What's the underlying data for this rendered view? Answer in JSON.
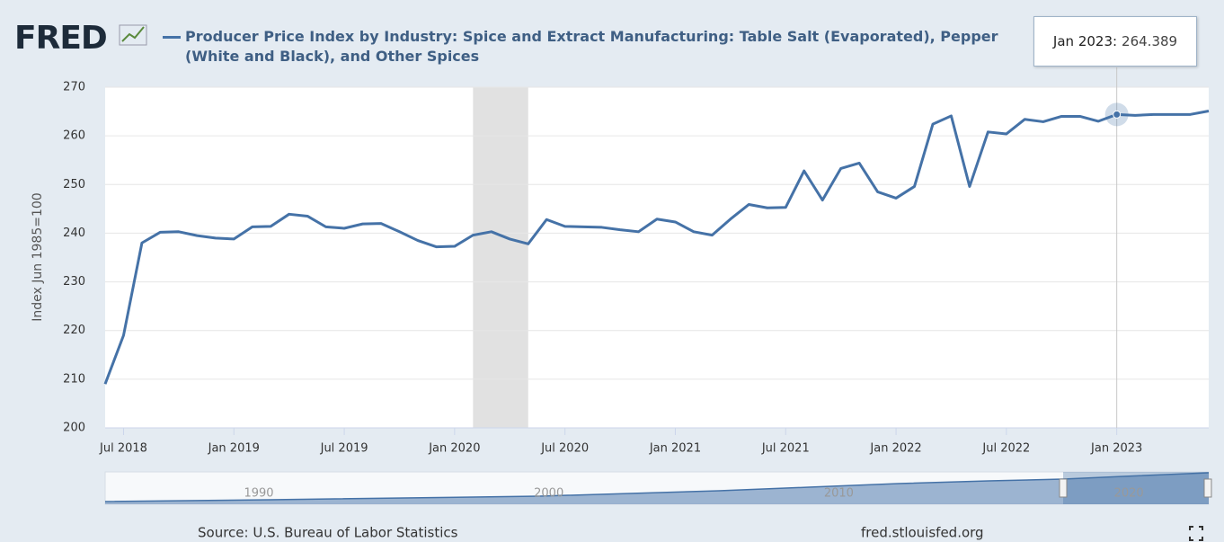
{
  "logo": "FRED",
  "chart_data": {
    "type": "line",
    "title": "Producer Price Index by Industry: Spice and Extract Manufacturing: Table Salt (Evaporated), Pepper (White and Black), and Other Spices",
    "y_label": "Index Jun 1985=100",
    "x": [
      "2018-06",
      "2018-07",
      "2018-08",
      "2018-09",
      "2018-10",
      "2018-11",
      "2018-12",
      "2019-01",
      "2019-02",
      "2019-03",
      "2019-04",
      "2019-05",
      "2019-06",
      "2019-07",
      "2019-08",
      "2019-09",
      "2019-10",
      "2019-11",
      "2019-12",
      "2020-01",
      "2020-02",
      "2020-03",
      "2020-04",
      "2020-05",
      "2020-06",
      "2020-07",
      "2020-08",
      "2020-09",
      "2020-10",
      "2020-11",
      "2020-12",
      "2021-01",
      "2021-02",
      "2021-03",
      "2021-04",
      "2021-05",
      "2021-06",
      "2021-07",
      "2021-08",
      "2021-09",
      "2021-10",
      "2021-11",
      "2021-12",
      "2022-01",
      "2022-02",
      "2022-03",
      "2022-04",
      "2022-05",
      "2022-06",
      "2022-07",
      "2022-08",
      "2022-09",
      "2022-10",
      "2022-11",
      "2022-12",
      "2023-01",
      "2023-02",
      "2023-03",
      "2023-04",
      "2023-05",
      "2023-06"
    ],
    "series": [
      {
        "name": "Producer Price Index by Industry: Spice and Extract Manufacturing: Table Salt (Evaporated), Pepper (White and Black), and Other Spices",
        "color": "#4572a7",
        "values": [
          209,
          219,
          238,
          240.2,
          240.3,
          239.5,
          239,
          238.8,
          241.3,
          241.4,
          243.9,
          243.5,
          241.3,
          241,
          241.9,
          242,
          240.3,
          238.5,
          237.2,
          237.3,
          239.6,
          240.3,
          238.8,
          237.8,
          242.8,
          241.4,
          241.3,
          241.2,
          240.7,
          240.3,
          242.9,
          242.3,
          240.3,
          239.6,
          242.9,
          245.9,
          245.2,
          245.3,
          252.8,
          246.8,
          253.3,
          254.4,
          248.5,
          247.2,
          249.6,
          262.4,
          264.1,
          249.6,
          260.8,
          260.4,
          263.4,
          262.9,
          264,
          264,
          263,
          264.389,
          264.2,
          264.4,
          264.4,
          264.4,
          265.1
        ]
      }
    ],
    "xlim": [
      "2018-06",
      "2023-06"
    ],
    "xticks": [
      {
        "value": "2018-07",
        "label": "Jul 2018"
      },
      {
        "value": "2019-01",
        "label": "Jan 2019"
      },
      {
        "value": "2019-07",
        "label": "Jul 2019"
      },
      {
        "value": "2020-01",
        "label": "Jan 2020"
      },
      {
        "value": "2020-07",
        "label": "Jul 2020"
      },
      {
        "value": "2021-01",
        "label": "Jan 2021"
      },
      {
        "value": "2021-07",
        "label": "Jul 2021"
      },
      {
        "value": "2022-01",
        "label": "Jan 2022"
      },
      {
        "value": "2022-07",
        "label": "Jul 2022"
      },
      {
        "value": "2023-01",
        "label": "Jan 2023"
      }
    ],
    "ylim": [
      200,
      270
    ],
    "yticks": [
      200,
      210,
      220,
      230,
      240,
      250,
      260,
      270
    ],
    "grid": true,
    "recessions": [
      {
        "start": "2020-02",
        "end": "2020-04"
      }
    ],
    "tooltip": {
      "label": "Jan 2023:",
      "x": "2023-01"
    },
    "navigator_labels": [
      "1990",
      "2000",
      "2010",
      "2020"
    ]
  },
  "source": "Source: U.S. Bureau of Labor Statistics",
  "site": "fred.stlouisfed.org"
}
